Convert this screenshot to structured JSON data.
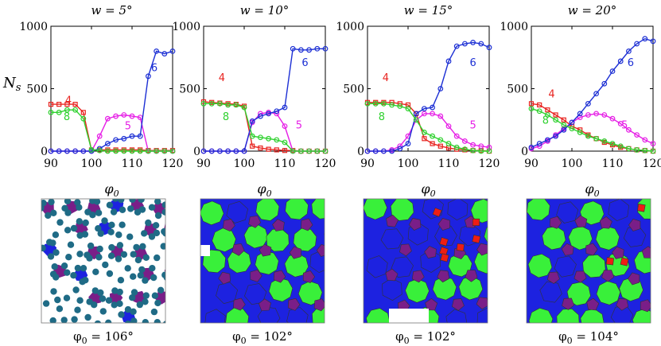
{
  "figure": {
    "y_axis_label": "N_s",
    "x_axis_label": "φ0",
    "palette": {
      "4": "#e8231f",
      "5": "#e61ee6",
      "6": "#1c2fd4",
      "8": "#2fd12f"
    },
    "tiling_colors": {
      "background": "#ffffff",
      "particle": "#1f6b86",
      "pentagon": "#7a1e88",
      "hexagon": "#1d22e0",
      "octagon": "#39f03a",
      "square": "#ee1d14",
      "edge": "#333333"
    }
  },
  "chart_data": [
    {
      "type": "line",
      "title": "w = 5°",
      "xlabel": "φ0",
      "ylabel": "N_s",
      "xlim": [
        90,
        120
      ],
      "ylim": [
        0,
        1000
      ],
      "xticks": [
        90,
        100,
        110,
        120
      ],
      "yticks": [
        0,
        500,
        1000
      ],
      "x": [
        90,
        92,
        94,
        96,
        98,
        100,
        102,
        104,
        106,
        108,
        110,
        112,
        114,
        116,
        118,
        120
      ],
      "series": [
        {
          "name": "4",
          "values": [
            375,
            375,
            375,
            375,
            310,
            10,
            10,
            10,
            10,
            10,
            10,
            10,
            5,
            5,
            5,
            5
          ]
        },
        {
          "name": "5",
          "values": [
            0,
            0,
            0,
            0,
            0,
            0,
            120,
            260,
            280,
            290,
            280,
            270,
            0,
            0,
            0,
            0
          ]
        },
        {
          "name": "6",
          "values": [
            0,
            0,
            0,
            0,
            0,
            0,
            20,
            60,
            90,
            100,
            120,
            120,
            600,
            800,
            780,
            800
          ]
        },
        {
          "name": "8",
          "values": [
            310,
            310,
            330,
            330,
            260,
            10,
            5,
            0,
            0,
            0,
            0,
            0,
            0,
            0,
            0,
            0
          ]
        }
      ]
    },
    {
      "type": "line",
      "title": "w = 10°",
      "xlabel": "φ0",
      "ylabel": "N_s",
      "xlim": [
        90,
        120
      ],
      "ylim": [
        0,
        1000
      ],
      "xticks": [
        90,
        100,
        110,
        120
      ],
      "yticks": [
        0,
        500,
        1000
      ],
      "x": [
        90,
        92,
        94,
        96,
        98,
        100,
        102,
        104,
        106,
        108,
        110,
        112,
        114,
        116,
        118,
        120
      ],
      "series": [
        {
          "name": "4",
          "values": [
            395,
            390,
            385,
            380,
            375,
            360,
            40,
            25,
            15,
            10,
            5,
            5,
            0,
            0,
            0,
            0
          ]
        },
        {
          "name": "5",
          "values": [
            0,
            0,
            0,
            0,
            0,
            0,
            230,
            300,
            310,
            300,
            200,
            0,
            0,
            0,
            0,
            0
          ]
        },
        {
          "name": "6",
          "values": [
            0,
            0,
            0,
            0,
            0,
            0,
            240,
            280,
            300,
            320,
            350,
            820,
            810,
            810,
            820,
            820
          ]
        },
        {
          "name": "8",
          "values": [
            380,
            380,
            380,
            370,
            370,
            350,
            120,
            110,
            100,
            90,
            70,
            0,
            0,
            0,
            0,
            0
          ]
        }
      ]
    },
    {
      "type": "line",
      "title": "w = 15°",
      "xlabel": "φ0",
      "ylabel": "N_s",
      "xlim": [
        90,
        120
      ],
      "ylim": [
        0,
        1000
      ],
      "xticks": [
        90,
        100,
        110,
        120
      ],
      "yticks": [
        0,
        500,
        1000
      ],
      "x": [
        90,
        92,
        94,
        96,
        98,
        100,
        102,
        104,
        106,
        108,
        110,
        112,
        114,
        116,
        118,
        120
      ],
      "series": [
        {
          "name": "4",
          "values": [
            390,
            390,
            390,
            390,
            380,
            370,
            300,
            100,
            60,
            40,
            25,
            15,
            10,
            5,
            5,
            0
          ]
        },
        {
          "name": "5",
          "values": [
            0,
            0,
            0,
            10,
            40,
            120,
            250,
            300,
            300,
            280,
            200,
            120,
            80,
            50,
            40,
            30
          ]
        },
        {
          "name": "6",
          "values": [
            0,
            0,
            0,
            0,
            20,
            60,
            300,
            340,
            350,
            500,
            720,
            840,
            860,
            870,
            860,
            830
          ]
        },
        {
          "name": "8",
          "values": [
            380,
            380,
            380,
            370,
            360,
            340,
            250,
            150,
            120,
            90,
            60,
            30,
            15,
            5,
            0,
            0
          ]
        }
      ]
    },
    {
      "type": "line",
      "title": "w = 20°",
      "xlabel": "φ0",
      "ylabel": "N_s",
      "xlim": [
        90,
        120
      ],
      "ylim": [
        0,
        1000
      ],
      "xticks": [
        90,
        100,
        110,
        120
      ],
      "yticks": [
        0,
        500,
        1000
      ],
      "x": [
        90,
        92,
        94,
        96,
        98,
        100,
        102,
        104,
        106,
        108,
        110,
        112,
        114,
        116,
        118,
        120
      ],
      "series": [
        {
          "name": "4",
          "values": [
            380,
            370,
            330,
            290,
            250,
            200,
            170,
            130,
            100,
            70,
            50,
            30,
            20,
            10,
            5,
            0
          ]
        },
        {
          "name": "5",
          "values": [
            20,
            40,
            80,
            130,
            180,
            230,
            270,
            290,
            300,
            290,
            260,
            220,
            170,
            130,
            90,
            60
          ]
        },
        {
          "name": "6",
          "values": [
            30,
            60,
            90,
            120,
            170,
            230,
            300,
            380,
            460,
            540,
            640,
            720,
            800,
            860,
            900,
            880
          ]
        },
        {
          "name": "8",
          "values": [
            340,
            320,
            290,
            250,
            210,
            180,
            150,
            120,
            100,
            80,
            60,
            40,
            20,
            10,
            5,
            0
          ]
        }
      ]
    }
  ],
  "snapshots": [
    {
      "caption": "φ0 = 106°",
      "style": "particles",
      "has_squares": false
    },
    {
      "caption": "φ0 = 102°",
      "style": "tiling",
      "has_squares": false
    },
    {
      "caption": "φ0 = 102°",
      "style": "tiling",
      "has_squares": true
    },
    {
      "caption": "φ0 = 104°",
      "style": "tiling",
      "has_squares": true
    }
  ]
}
